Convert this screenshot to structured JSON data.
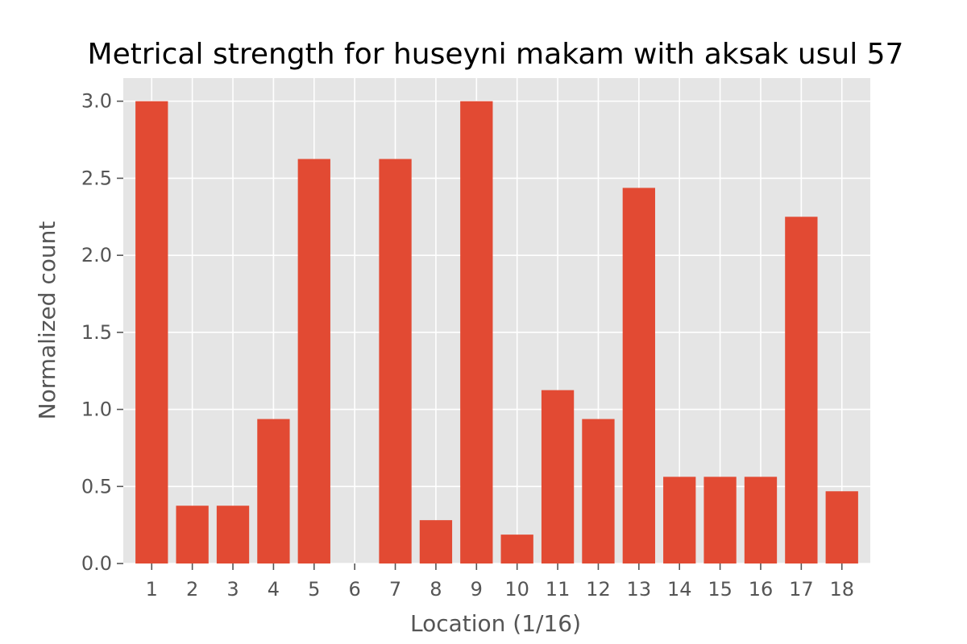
{
  "chart_data": {
    "type": "bar",
    "title": "Metrical strength for huseyni makam with aksak usul 57",
    "xlabel": "Location (1/16)",
    "ylabel": "Normalized count",
    "categories": [
      "1",
      "2",
      "3",
      "4",
      "5",
      "6",
      "7",
      "8",
      "9",
      "10",
      "11",
      "12",
      "13",
      "14",
      "15",
      "16",
      "17",
      "18"
    ],
    "values": [
      3.0,
      0.375,
      0.375,
      0.9375,
      2.625,
      0.0,
      2.625,
      0.28125,
      3.0,
      0.1875,
      1.125,
      0.9375,
      2.4375,
      0.5625,
      0.5625,
      0.5625,
      2.25,
      0.46875
    ],
    "ylim": [
      0,
      3.15
    ],
    "yticks": [
      "0.0",
      "0.5",
      "1.0",
      "1.5",
      "2.0",
      "2.5",
      "3.0"
    ],
    "grid": true,
    "bar_color": "#E24A33",
    "background_color": "#E5E5E5",
    "grid_color": "#FFFFFF"
  }
}
